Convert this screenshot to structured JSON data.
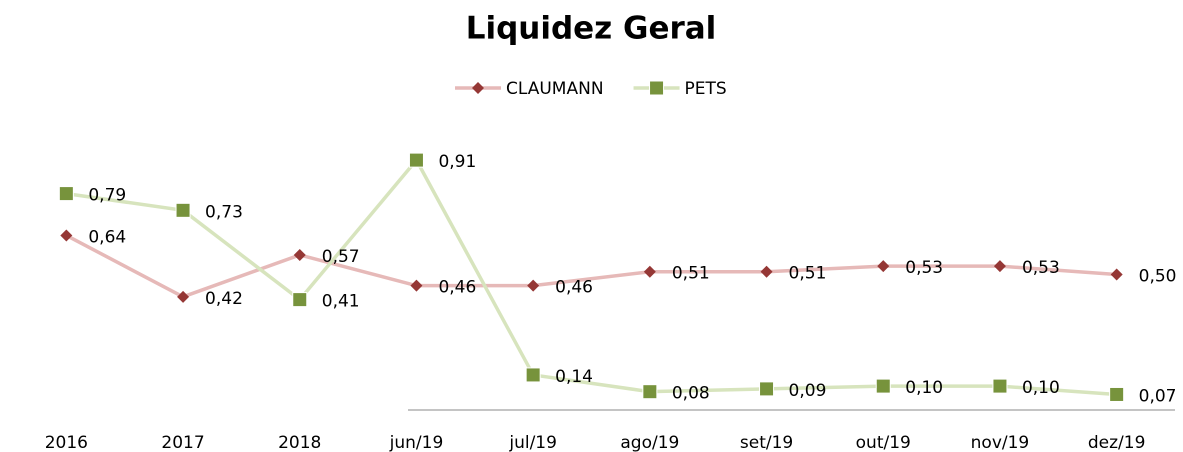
{
  "chart_data": {
    "type": "line",
    "title": "Liquidez Geral",
    "categories": [
      "2016",
      "2017",
      "2018",
      "jun/19",
      "jul/19",
      "ago/19",
      "set/19",
      "out/19",
      "nov/19",
      "dez/19"
    ],
    "series": [
      {
        "name": "CLAUMANN",
        "color": "#e6b9b8",
        "marker_color": "#953735",
        "marker": "diamond",
        "values": [
          0.64,
          0.42,
          0.57,
          0.46,
          0.46,
          0.51,
          0.51,
          0.53,
          0.53,
          0.5
        ],
        "value_labels": [
          "0,64",
          "0,42",
          "0,57",
          "0,46",
          "0,46",
          "0,51",
          "0,51",
          "0,53",
          "0,53",
          "0,50"
        ]
      },
      {
        "name": "PETS",
        "color": "#d7e4bd",
        "marker_color": "#77933c",
        "marker": "square",
        "values": [
          0.79,
          0.73,
          0.41,
          0.91,
          0.14,
          0.08,
          0.09,
          0.1,
          0.1,
          0.07
        ],
        "value_labels": [
          "0,79",
          "0,73",
          "0,41",
          "0,91",
          "0,14",
          "0,08",
          "0,09",
          "0,10",
          "0,10",
          "0,07"
        ]
      }
    ],
    "ylim": [
      0,
      1
    ],
    "legend": "top"
  }
}
